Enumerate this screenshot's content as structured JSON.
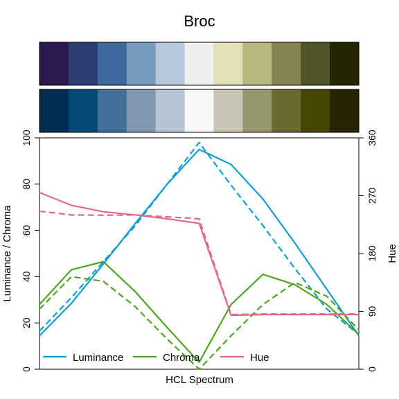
{
  "chart_data": {
    "type": "line",
    "title": "Broc",
    "xlabel": "HCL Spectrum",
    "ylabel": "Luminance / Chroma",
    "y2label": "Hue",
    "ylim": [
      0,
      100
    ],
    "y2lim": [
      0,
      360
    ],
    "yticks": [
      "0",
      "20",
      "40",
      "60",
      "80",
      "100"
    ],
    "y2ticks": [
      "0",
      "90",
      "180",
      "270",
      "360"
    ],
    "n_points": 11,
    "swatches_top": [
      "#2c1a4f",
      "#2b3e74",
      "#3c6a9c",
      "#789bbf",
      "#b8c8dc",
      "#eef0ee",
      "#e2dfb9",
      "#b8b87e",
      "#858450",
      "#515327",
      "#262600"
    ],
    "swatches_bottom": [
      "#002c4f",
      "#004a75",
      "#416f97",
      "#8097b1",
      "#b8c4d5",
      "#f8f8f8",
      "#c7c6b4",
      "#97976f",
      "#6b6a2e",
      "#474600",
      "#272500"
    ],
    "legend_position": "bottom-left",
    "legend": [
      "Luminance",
      "Chroma",
      "Hue"
    ],
    "series": [
      {
        "name": "Luminance",
        "axis": "left",
        "style": "solid",
        "color": "#0f9cd8",
        "values": [
          14.5,
          28.5,
          45.5,
          63,
          80,
          95,
          88.5,
          73.5,
          54.5,
          34.5,
          14.5
        ]
      },
      {
        "name": "Luminance",
        "axis": "left",
        "style": "dashed",
        "color": "#0f9cd8",
        "values": [
          16.5,
          31,
          46.5,
          62,
          80,
          98,
          79.5,
          62,
          43.5,
          26,
          15
        ]
      },
      {
        "name": "Chroma",
        "axis": "left",
        "style": "solid",
        "color": "#4ea521",
        "values": [
          28,
          43,
          46.5,
          33.5,
          18,
          3,
          28,
          41,
          36.5,
          28,
          15
        ]
      },
      {
        "name": "Chroma",
        "axis": "left",
        "style": "dashed",
        "color": "#4ea521",
        "values": [
          26,
          40,
          38,
          27,
          13,
          0,
          14.5,
          28,
          37.5,
          31.5,
          17
        ]
      },
      {
        "name": "Hue",
        "axis": "right",
        "style": "solid",
        "color": "#e16a86",
        "values": [
          275,
          255,
          245,
          240,
          234,
          227,
          84,
          85,
          85,
          85,
          85
        ]
      },
      {
        "name": "Hue",
        "axis": "right",
        "style": "dashed",
        "color": "#e16a86",
        "values": [
          246,
          240,
          239.5,
          240,
          237,
          234,
          85,
          86,
          86,
          86,
          86
        ]
      }
    ]
  }
}
